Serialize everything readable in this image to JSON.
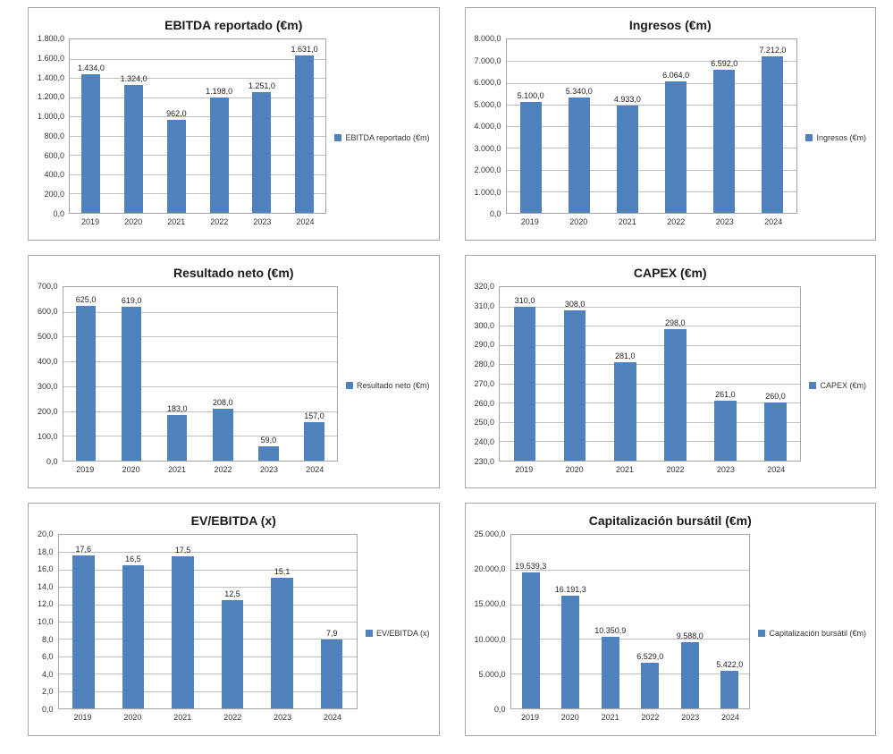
{
  "chart_style": {
    "bar_color": "#4F81BD",
    "gridline_color": "#BFBFBF",
    "panel_border_color": "#A6A6A6",
    "text_color": "#333333"
  },
  "chart_data": [
    {
      "type": "bar",
      "title": "EBITDA reportado (€m)",
      "legend": {
        "label": "EBITDA reportado (€m)",
        "position": "right"
      },
      "categories": [
        "2019",
        "2020",
        "2021",
        "2022",
        "2023",
        "2024"
      ],
      "values": [
        1434,
        1324,
        962,
        1198,
        1251,
        1631
      ],
      "value_labels": [
        "1.434,0",
        "1.324,0",
        "962,0",
        "1.198,0",
        "1.251,0",
        "1.631,0"
      ],
      "ylim": [
        0,
        1800
      ],
      "y_ticks_top_to_bottom": [
        "1.800,0",
        "1.600,0",
        "1.400,0",
        "1.200,0",
        "1.000,0",
        "800,0",
        "600,0",
        "400,0",
        "200,0",
        "0,0"
      ],
      "grid": true
    },
    {
      "type": "bar",
      "title": "Ingresos (€m)",
      "legend": {
        "label": "Ingresos (€m)",
        "position": "right"
      },
      "categories": [
        "2019",
        "2020",
        "2021",
        "2022",
        "2023",
        "2024"
      ],
      "values": [
        5100,
        5340,
        4933,
        6064,
        6592,
        7212
      ],
      "value_labels": [
        "5.100,0",
        "5.340,0",
        "4.933,0",
        "6.064,0",
        "6.592,0",
        "7.212,0"
      ],
      "ylim": [
        0,
        8000
      ],
      "y_ticks_top_to_bottom": [
        "8.000,0",
        "7.000,0",
        "6.000,0",
        "5.000,0",
        "4.000,0",
        "3.000,0",
        "2.000,0",
        "1.000,0",
        "0,0"
      ],
      "grid": true
    },
    {
      "type": "bar",
      "title": "Resultado neto (€m)",
      "legend": {
        "label": "Resultado neto (€m)",
        "position": "right"
      },
      "categories": [
        "2019",
        "2020",
        "2021",
        "2022",
        "2023",
        "2024"
      ],
      "values": [
        625,
        619,
        183,
        208,
        59,
        157
      ],
      "value_labels": [
        "625,0",
        "619,0",
        "183,0",
        "208,0",
        "59,0",
        "157,0"
      ],
      "ylim": [
        0,
        700
      ],
      "y_ticks_top_to_bottom": [
        "700,0",
        "600,0",
        "500,0",
        "400,0",
        "300,0",
        "200,0",
        "100,0",
        "0,0"
      ],
      "grid": true
    },
    {
      "type": "bar",
      "title": "CAPEX (€m)",
      "legend": {
        "label": "CAPEX (€m)",
        "position": "right"
      },
      "categories": [
        "2019",
        "2020",
        "2021",
        "2022",
        "2023",
        "2024"
      ],
      "values": [
        310,
        308,
        281,
        298,
        261,
        260
      ],
      "value_labels": [
        "310,0",
        "308,0",
        "281,0",
        "298,0",
        "261,0",
        "260,0"
      ],
      "ylim": [
        230,
        320
      ],
      "y_ticks_top_to_bottom": [
        "320,0",
        "310,0",
        "300,0",
        "290,0",
        "280,0",
        "270,0",
        "260,0",
        "250,0",
        "240,0",
        "230,0"
      ],
      "grid": true
    },
    {
      "type": "bar",
      "title": "EV/EBITDA (x)",
      "legend": {
        "label": "EV/EBITDA (x)",
        "position": "right"
      },
      "categories": [
        "2019",
        "2020",
        "2021",
        "2022",
        "2023",
        "2024"
      ],
      "values": [
        17.6,
        16.5,
        17.5,
        12.5,
        15.1,
        7.9
      ],
      "value_labels": [
        "17,6",
        "16,5",
        "17,5",
        "12,5",
        "15,1",
        "7,9"
      ],
      "ylim": [
        0,
        20
      ],
      "y_ticks_top_to_bottom": [
        "20,0",
        "18,0",
        "16,0",
        "14,0",
        "12,0",
        "10,0",
        "8,0",
        "6,0",
        "4,0",
        "2,0",
        "0,0"
      ],
      "grid": true
    },
    {
      "type": "bar",
      "title": "Capitalización bursátil (€m)",
      "legend": {
        "label": "Capitalización bursátil (€m)",
        "position": "right"
      },
      "categories": [
        "2019",
        "2020",
        "2021",
        "2022",
        "2023",
        "2024"
      ],
      "values": [
        19539.3,
        16191.3,
        10350.9,
        6529.0,
        9588.0,
        5422.0
      ],
      "value_labels": [
        "19.539,3",
        "16.191,3",
        "10.350,9",
        "6.529,0",
        "9.588,0",
        "5.422,0"
      ],
      "ylim": [
        0,
        25000
      ],
      "y_ticks_top_to_bottom": [
        "25.000,0",
        "20.000,0",
        "15.000,0",
        "10.000,0",
        "5.000,0",
        "0,0"
      ],
      "grid": true
    }
  ]
}
